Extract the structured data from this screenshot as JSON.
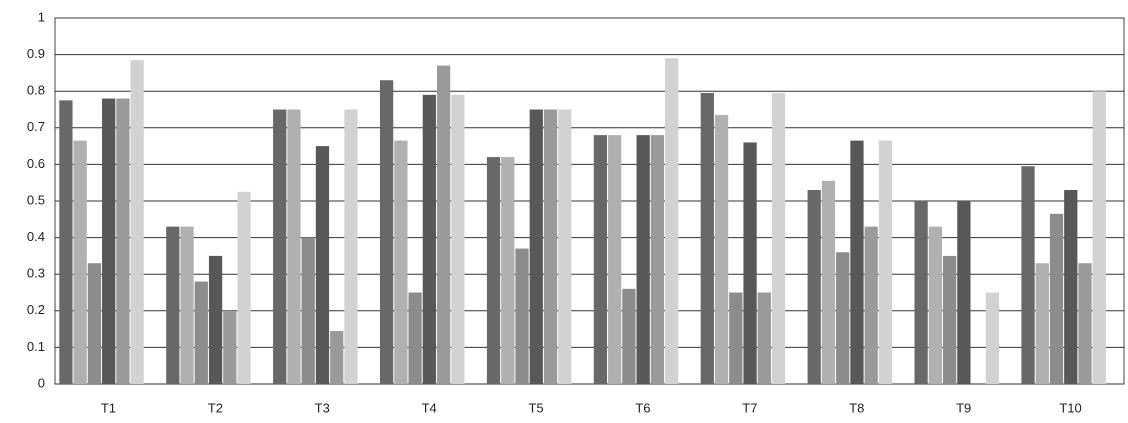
{
  "chart_data": {
    "type": "bar",
    "categories": [
      "T1",
      "T2",
      "T3",
      "T4",
      "T5",
      "T6",
      "T7",
      "T8",
      "T9",
      "T10"
    ],
    "series": [
      {
        "color": "#686868",
        "values": [
          0.775,
          0.43,
          0.75,
          0.83,
          0.62,
          0.68,
          0.795,
          0.53,
          0.5,
          0.595
        ]
      },
      {
        "color": "#b0b0b0",
        "values": [
          0.665,
          0.43,
          0.75,
          0.665,
          0.62,
          0.68,
          0.735,
          0.555,
          0.43,
          0.33
        ]
      },
      {
        "color": "#8c8c8c",
        "values": [
          0.33,
          0.28,
          0.4,
          0.25,
          0.37,
          0.26,
          0.25,
          0.36,
          0.35,
          0.465
        ]
      },
      {
        "color": "#585858",
        "values": [
          0.78,
          0.35,
          0.65,
          0.79,
          0.75,
          0.68,
          0.66,
          0.665,
          0.5,
          0.53
        ]
      },
      {
        "color": "#9a9a9a",
        "values": [
          0.78,
          0.2,
          0.145,
          0.87,
          0.75,
          0.68,
          0.25,
          0.43,
          0,
          0.33
        ]
      },
      {
        "color": "#d2d2d2",
        "values": [
          0.885,
          0.525,
          0.75,
          0.79,
          0.75,
          0.89,
          0.795,
          0.665,
          0.25,
          0.8
        ]
      }
    ],
    "ylim": [
      0,
      1
    ],
    "yticks": [
      0,
      0.1,
      0.2,
      0.3,
      0.4,
      0.5,
      0.6,
      0.7,
      0.8,
      0.9,
      1
    ],
    "grid": true
  }
}
